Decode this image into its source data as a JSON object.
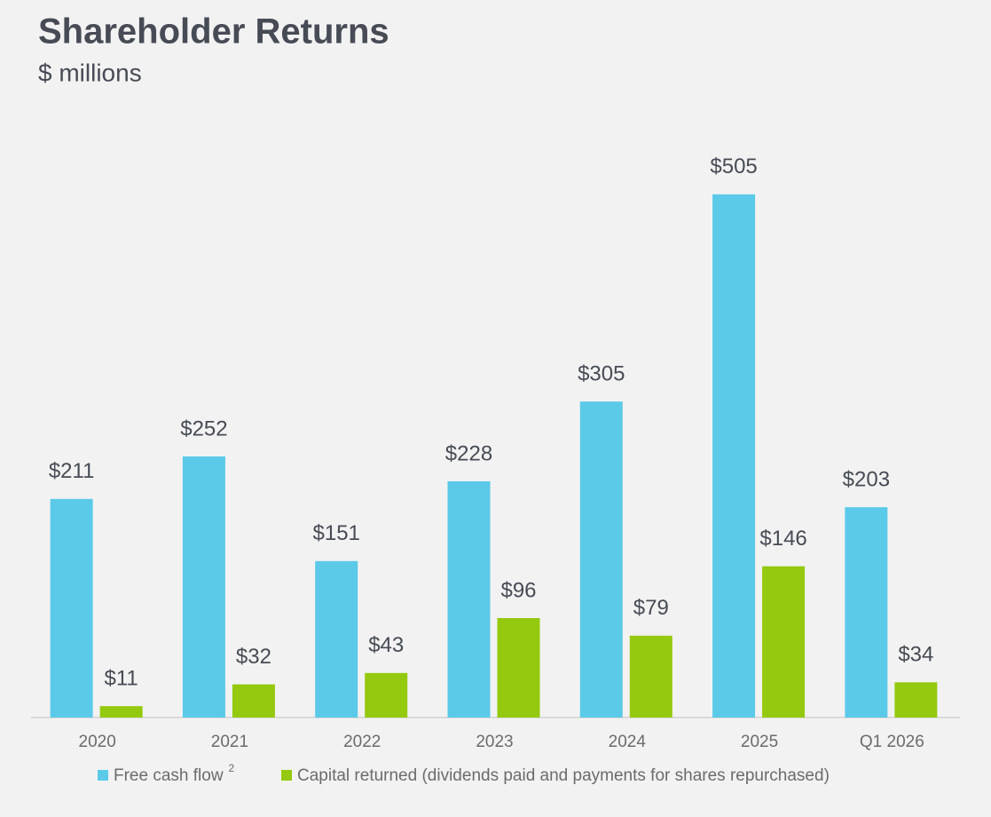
{
  "chart_data": {
    "type": "bar",
    "title": "Shareholder Returns",
    "subtitle": "$ millions",
    "categories": [
      "2020",
      "2021",
      "2022",
      "2023",
      "2024",
      "2025",
      "Q1 2026"
    ],
    "series": [
      {
        "name": "Free cash flow",
        "footnote": "2",
        "color": "#5bc9e8",
        "values": [
          211,
          252,
          151,
          228,
          305,
          505,
          203
        ],
        "value_labels": [
          "$211",
          "$252",
          "$151",
          "$228",
          "$305",
          "$505",
          "$203"
        ]
      },
      {
        "name": "Capital returned (dividends paid and payments for shares repurchased)",
        "color": "#94c90f",
        "values": [
          11,
          32,
          43,
          96,
          79,
          146,
          34
        ],
        "value_labels": [
          "$11",
          "$32",
          "$43",
          "$96",
          "$79",
          "$146",
          "$34"
        ]
      }
    ],
    "ylim": [
      0,
      600
    ]
  }
}
